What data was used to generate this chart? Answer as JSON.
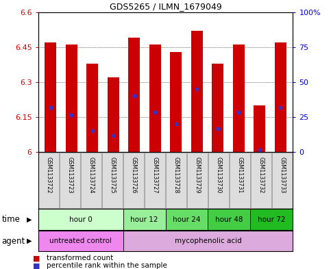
{
  "title": "GDS5265 / ILMN_1679049",
  "samples": [
    "GSM1133722",
    "GSM1133723",
    "GSM1133724",
    "GSM1133725",
    "GSM1133726",
    "GSM1133727",
    "GSM1133728",
    "GSM1133729",
    "GSM1133730",
    "GSM1133731",
    "GSM1133732",
    "GSM1133733"
  ],
  "bar_tops": [
    6.47,
    6.46,
    6.38,
    6.32,
    6.49,
    6.46,
    6.43,
    6.52,
    6.38,
    6.46,
    6.2,
    6.47
  ],
  "bar_base": 6.0,
  "blue_dot_y": [
    6.19,
    6.16,
    6.09,
    6.07,
    6.24,
    6.17,
    6.12,
    6.27,
    6.1,
    6.17,
    6.01,
    6.19
  ],
  "ylim": [
    6.0,
    6.6
  ],
  "y2lim": [
    0,
    100
  ],
  "yticks": [
    6.0,
    6.15,
    6.3,
    6.45,
    6.6
  ],
  "ytick_labels": [
    "6",
    "6.15",
    "6.3",
    "6.45",
    "6.6"
  ],
  "y2ticks": [
    0,
    25,
    50,
    75,
    100
  ],
  "y2tick_labels": [
    "0",
    "25",
    "50",
    "75",
    "100%"
  ],
  "bar_color": "#cc0000",
  "blue_dot_color": "#3333cc",
  "time_groups": [
    {
      "label": "hour 0",
      "start": 0,
      "end": 3,
      "color": "#ccffcc"
    },
    {
      "label": "hour 12",
      "start": 4,
      "end": 5,
      "color": "#99ee99"
    },
    {
      "label": "hour 24",
      "start": 6,
      "end": 7,
      "color": "#66dd66"
    },
    {
      "label": "hour 48",
      "start": 8,
      "end": 9,
      "color": "#44cc44"
    },
    {
      "label": "hour 72",
      "start": 10,
      "end": 11,
      "color": "#22bb22"
    }
  ],
  "agent_groups": [
    {
      "label": "untreated control",
      "start": 0,
      "end": 3,
      "color": "#ee88ee"
    },
    {
      "label": "mycophenolic acid",
      "start": 4,
      "end": 11,
      "color": "#ddaadd"
    }
  ],
  "legend_items": [
    {
      "label": "transformed count",
      "color": "#cc0000",
      "marker": "s"
    },
    {
      "label": "percentile rank within the sample",
      "color": "#3333cc",
      "marker": "s"
    }
  ],
  "time_label": "time",
  "agent_label": "agent"
}
